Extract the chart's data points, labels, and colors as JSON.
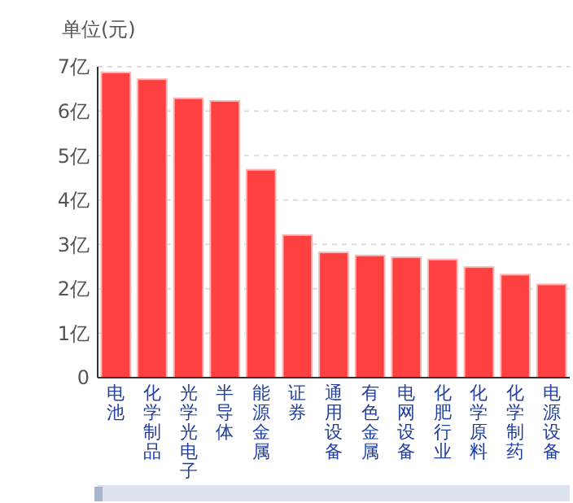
{
  "chart_data": {
    "type": "bar",
    "ylabel": "单位(元)",
    "categories": [
      "电池",
      "化学制品",
      "光学光电子",
      "半导体",
      "能源金属",
      "证券",
      "通用设备",
      "有色金属",
      "电网设备",
      "化肥行业",
      "化学原料",
      "化学制药",
      "电源设备"
    ],
    "values": [
      6.87,
      6.72,
      6.29,
      6.23,
      4.68,
      3.21,
      2.82,
      2.75,
      2.71,
      2.66,
      2.49,
      2.32,
      2.1
    ],
    "color": "#ff4040",
    "ylim": [
      0,
      7
    ],
    "yticks": [
      0,
      {
        "value": 1,
        "label": "1亿"
      },
      {
        "value": 2,
        "label": "2亿"
      },
      {
        "value": 3,
        "label": "3亿"
      },
      {
        "value": 4,
        "label": "4亿"
      },
      {
        "value": 5,
        "label": "5亿"
      },
      {
        "value": 6,
        "label": "6亿"
      },
      {
        "value": 7,
        "label": "7亿"
      }
    ],
    "grid": "y"
  }
}
